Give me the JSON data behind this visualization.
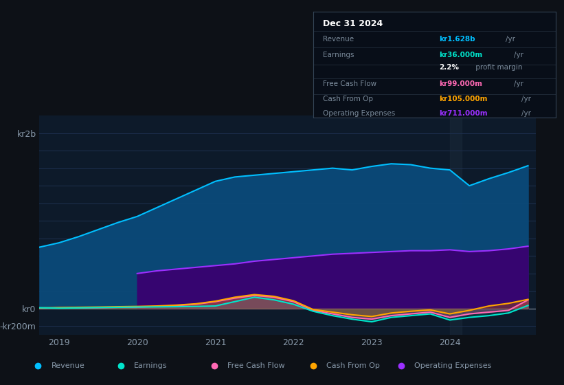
{
  "bg_color": "#0d1117",
  "plot_bg_color": "#0d1a2a",
  "grid_color": "#1e3050",
  "text_color": "#8899aa",
  "title_color": "#ffffff",
  "ylim": [
    -300000000,
    2200000000
  ],
  "yticks": [
    -200000000,
    0,
    200000000,
    400000000,
    600000000,
    800000000,
    1000000000,
    1200000000,
    1400000000,
    1600000000,
    1800000000,
    2000000000
  ],
  "years": [
    2018.75,
    2019.0,
    2019.25,
    2019.5,
    2019.75,
    2020.0,
    2020.25,
    2020.5,
    2020.75,
    2021.0,
    2021.25,
    2021.5,
    2021.75,
    2022.0,
    2022.25,
    2022.5,
    2022.75,
    2023.0,
    2023.25,
    2023.5,
    2023.75,
    2024.0,
    2024.25,
    2024.5,
    2024.75,
    2025.0
  ],
  "revenue": [
    700000000,
    750000000,
    820000000,
    900000000,
    980000000,
    1050000000,
    1150000000,
    1250000000,
    1350000000,
    1450000000,
    1500000000,
    1520000000,
    1540000000,
    1560000000,
    1580000000,
    1600000000,
    1580000000,
    1620000000,
    1650000000,
    1640000000,
    1600000000,
    1580000000,
    1400000000,
    1480000000,
    1550000000,
    1628000000
  ],
  "earnings": [
    10000000,
    5000000,
    8000000,
    12000000,
    15000000,
    18000000,
    20000000,
    22000000,
    25000000,
    30000000,
    80000000,
    130000000,
    100000000,
    50000000,
    -30000000,
    -80000000,
    -120000000,
    -150000000,
    -100000000,
    -80000000,
    -60000000,
    -130000000,
    -100000000,
    -80000000,
    -50000000,
    36000000
  ],
  "free_cash_flow": [
    5000000,
    8000000,
    10000000,
    12000000,
    15000000,
    18000000,
    25000000,
    35000000,
    50000000,
    80000000,
    120000000,
    150000000,
    130000000,
    80000000,
    -20000000,
    -60000000,
    -100000000,
    -120000000,
    -80000000,
    -60000000,
    -40000000,
    -100000000,
    -60000000,
    -40000000,
    -20000000,
    99000000
  ],
  "cash_from_op": [
    8000000,
    12000000,
    15000000,
    18000000,
    22000000,
    25000000,
    30000000,
    40000000,
    55000000,
    85000000,
    130000000,
    160000000,
    140000000,
    90000000,
    -10000000,
    -40000000,
    -70000000,
    -90000000,
    -50000000,
    -30000000,
    -15000000,
    -60000000,
    -20000000,
    30000000,
    60000000,
    105000000
  ],
  "op_expenses": [
    0,
    0,
    0,
    0,
    0,
    400000000,
    430000000,
    450000000,
    470000000,
    490000000,
    510000000,
    540000000,
    560000000,
    580000000,
    600000000,
    620000000,
    630000000,
    640000000,
    650000000,
    660000000,
    660000000,
    670000000,
    650000000,
    660000000,
    680000000,
    711000000
  ],
  "revenue_color": "#00bfff",
  "revenue_fill": "#0a4a7a",
  "earnings_color": "#00e5cc",
  "fcf_color": "#ff69b4",
  "cashop_color": "#ffa500",
  "opex_color": "#9b30ff",
  "opex_fill": "#3a0070",
  "legend_items": [
    {
      "label": "Revenue",
      "color": "#00bfff"
    },
    {
      "label": "Earnings",
      "color": "#00e5cc"
    },
    {
      "label": "Free Cash Flow",
      "color": "#ff69b4"
    },
    {
      "label": "Cash From Op",
      "color": "#ffa500"
    },
    {
      "label": "Operating Expenses",
      "color": "#9b30ff"
    }
  ],
  "info_box": {
    "title": "Dec 31 2024",
    "rows": [
      {
        "label": "Revenue",
        "value": "kr1.628b",
        "unit": "/yr",
        "value_color": "#00bfff"
      },
      {
        "label": "Earnings",
        "value": "kr36.000m",
        "unit": "/yr",
        "value_color": "#00e5cc"
      },
      {
        "label": "",
        "value": "2.2%",
        "unit": " profit margin",
        "value_color": "#ffffff"
      },
      {
        "label": "Free Cash Flow",
        "value": "kr99.000m",
        "unit": "/yr",
        "value_color": "#ff69b4"
      },
      {
        "label": "Cash From Op",
        "value": "kr105.000m",
        "unit": "/yr",
        "value_color": "#ffa500"
      },
      {
        "label": "Operating Expenses",
        "value": "kr711.000m",
        "unit": "/yr",
        "value_color": "#9b30ff"
      }
    ]
  }
}
